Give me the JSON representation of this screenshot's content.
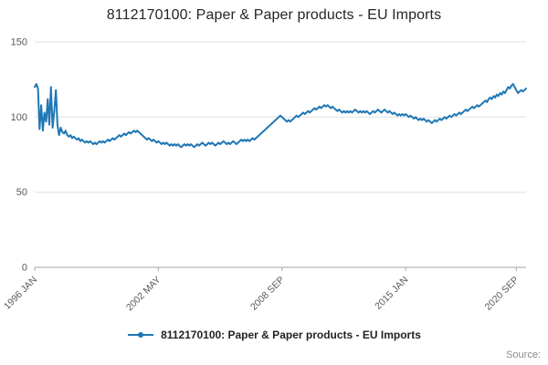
{
  "title": "8112170100: Paper & Paper products - EU Imports",
  "legend": {
    "label": "8112170100: Paper & Paper products - EU Imports"
  },
  "source_label": "Source:",
  "colors": {
    "line": "#1f77b4",
    "grid": "#e0e0e0",
    "axis": "#a6a6a6",
    "tick_text": "#595959"
  },
  "chart_data": {
    "type": "line",
    "title": "8112170100: Paper & Paper products - EU Imports",
    "x_start": "1996 JAN",
    "frequency": "monthly",
    "ylim": [
      0,
      150
    ],
    "yticks": [
      0,
      50,
      100,
      150
    ],
    "grid": true,
    "legend_position": "bottom",
    "xticks": [
      {
        "label": "1996 JAN",
        "index": 0
      },
      {
        "label": "2002 MAY",
        "index": 76
      },
      {
        "label": "2008 SEP",
        "index": 152
      },
      {
        "label": "2015 JAN",
        "index": 228
      },
      {
        "label": "2020 SEP",
        "index": 296
      }
    ],
    "series_name": "8112170100: Paper & Paper products - EU Imports",
    "values": [
      120,
      122,
      119,
      92,
      108,
      91,
      103,
      97,
      112,
      95,
      120,
      93,
      104,
      118,
      95,
      88,
      93,
      90,
      89,
      91,
      88,
      87,
      88,
      86,
      87,
      86,
      85,
      86,
      84,
      85,
      84,
      83,
      84,
      83,
      84,
      83,
      82,
      83,
      82,
      83,
      84,
      83,
      84,
      83,
      84,
      85,
      84,
      85,
      86,
      85,
      86,
      87,
      88,
      87,
      88,
      89,
      88,
      89,
      90,
      89,
      90,
      91,
      90,
      91,
      90,
      89,
      88,
      87,
      86,
      85,
      86,
      85,
      84,
      85,
      84,
      83,
      84,
      83,
      82,
      83,
      82,
      83,
      82,
      81,
      82,
      81,
      82,
      81,
      82,
      81,
      80,
      81,
      82,
      81,
      82,
      81,
      82,
      81,
      80,
      81,
      82,
      81,
      82,
      83,
      82,
      81,
      82,
      83,
      82,
      83,
      82,
      81,
      82,
      83,
      82,
      83,
      84,
      83,
      82,
      83,
      82,
      83,
      84,
      83,
      82,
      83,
      84,
      85,
      84,
      85,
      84,
      85,
      84,
      85,
      86,
      85,
      86,
      87,
      88,
      89,
      90,
      91,
      92,
      93,
      94,
      95,
      96,
      97,
      98,
      99,
      100,
      101,
      100,
      99,
      98,
      97,
      98,
      97,
      98,
      99,
      100,
      101,
      100,
      101,
      102,
      103,
      102,
      103,
      104,
      103,
      104,
      105,
      106,
      105,
      106,
      107,
      106,
      107,
      108,
      107,
      108,
      107,
      106,
      107,
      106,
      105,
      104,
      105,
      104,
      103,
      104,
      103,
      104,
      103,
      104,
      103,
      104,
      105,
      104,
      103,
      104,
      103,
      104,
      103,
      104,
      103,
      102,
      103,
      104,
      103,
      104,
      105,
      104,
      103,
      104,
      105,
      104,
      103,
      104,
      103,
      102,
      103,
      102,
      101,
      102,
      101,
      102,
      101,
      102,
      101,
      100,
      101,
      100,
      99,
      100,
      99,
      98,
      99,
      98,
      99,
      98,
      97,
      98,
      97,
      96,
      97,
      98,
      97,
      98,
      99,
      98,
      99,
      100,
      99,
      100,
      101,
      100,
      101,
      102,
      101,
      102,
      103,
      102,
      103,
      104,
      105,
      104,
      105,
      106,
      107,
      106,
      107,
      108,
      107,
      108,
      109,
      110,
      111,
      110,
      112,
      113,
      112,
      114,
      113,
      115,
      114,
      116,
      115,
      117,
      116,
      118,
      120,
      119,
      121,
      122,
      120,
      118,
      116,
      117,
      118,
      117,
      118,
      119
    ]
  }
}
